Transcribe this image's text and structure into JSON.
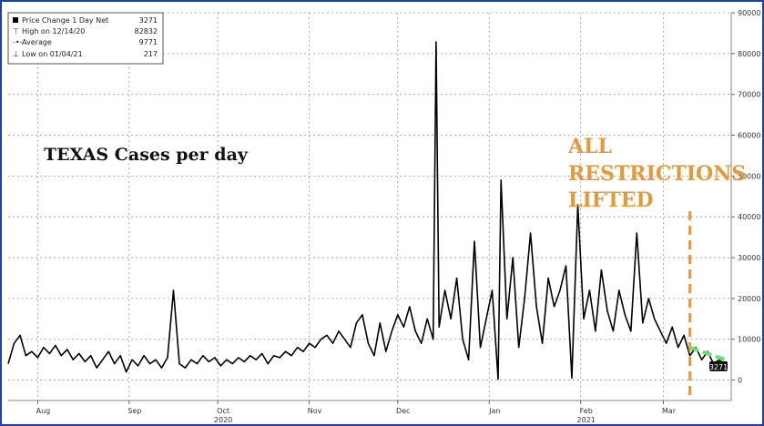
{
  "chart_data": {
    "type": "line",
    "title": "TEXAS Cases per day",
    "annotation": [
      "ALL",
      "RESTRICTIONS",
      "LIFTED"
    ],
    "annotation_date": "2021-03-10",
    "x_start": "2020-07-22",
    "x_end": "2021-03-24",
    "ylim": [
      -5000,
      90000
    ],
    "y_ticks": [
      0,
      10000,
      20000,
      30000,
      40000,
      50000,
      60000,
      70000,
      80000,
      90000
    ],
    "x_ticks": [
      {
        "date": "2020-08-01",
        "label": "Aug",
        "year": ""
      },
      {
        "date": "2020-09-01",
        "label": "Sep",
        "year": ""
      },
      {
        "date": "2020-10-01",
        "label": "Oct",
        "year": "2020"
      },
      {
        "date": "2020-11-01",
        "label": "Nov",
        "year": ""
      },
      {
        "date": "2020-12-01",
        "label": "Dec",
        "year": ""
      },
      {
        "date": "2021-01-01",
        "label": "Jan",
        "year": ""
      },
      {
        "date": "2021-02-01",
        "label": "Feb",
        "year": "2021"
      },
      {
        "date": "2021-03-01",
        "label": "Mar",
        "year": ""
      }
    ],
    "legend": [
      {
        "label": "Price Change 1 Day Net",
        "value": "3271"
      },
      {
        "label": "High on 12/14/20",
        "value": "82832"
      },
      {
        "label": "Average",
        "value": "9771"
      },
      {
        "label": "Low on 01/04/21",
        "value": "217"
      }
    ],
    "last_value_label": "3271",
    "series": [
      {
        "color": "#000000",
        "points": [
          [
            "2020-07-22",
            4000
          ],
          [
            "2020-07-24",
            9000
          ],
          [
            "2020-07-26",
            11000
          ],
          [
            "2020-07-28",
            6000
          ],
          [
            "2020-07-30",
            7000
          ],
          [
            "2020-08-01",
            5500
          ],
          [
            "2020-08-03",
            8000
          ],
          [
            "2020-08-05",
            6500
          ],
          [
            "2020-08-07",
            8500
          ],
          [
            "2020-08-09",
            6000
          ],
          [
            "2020-08-11",
            7500
          ],
          [
            "2020-08-13",
            5000
          ],
          [
            "2020-08-15",
            6500
          ],
          [
            "2020-08-17",
            4500
          ],
          [
            "2020-08-19",
            6000
          ],
          [
            "2020-08-21",
            3000
          ],
          [
            "2020-08-23",
            5000
          ],
          [
            "2020-08-25",
            7000
          ],
          [
            "2020-08-27",
            4000
          ],
          [
            "2020-08-29",
            6000
          ],
          [
            "2020-08-31",
            2000
          ],
          [
            "2020-09-02",
            5000
          ],
          [
            "2020-09-04",
            3500
          ],
          [
            "2020-09-06",
            6000
          ],
          [
            "2020-09-08",
            4000
          ],
          [
            "2020-09-10",
            5000
          ],
          [
            "2020-09-12",
            3000
          ],
          [
            "2020-09-14",
            5500
          ],
          [
            "2020-09-16",
            22000
          ],
          [
            "2020-09-18",
            4000
          ],
          [
            "2020-09-20",
            3000
          ],
          [
            "2020-09-22",
            5000
          ],
          [
            "2020-09-24",
            4000
          ],
          [
            "2020-09-26",
            6000
          ],
          [
            "2020-09-28",
            4500
          ],
          [
            "2020-09-30",
            5500
          ],
          [
            "2020-10-02",
            3500
          ],
          [
            "2020-10-04",
            5000
          ],
          [
            "2020-10-06",
            4000
          ],
          [
            "2020-10-08",
            5500
          ],
          [
            "2020-10-10",
            4500
          ],
          [
            "2020-10-12",
            6000
          ],
          [
            "2020-10-14",
            5000
          ],
          [
            "2020-10-16",
            6500
          ],
          [
            "2020-10-18",
            4000
          ],
          [
            "2020-10-20",
            6000
          ],
          [
            "2020-10-22",
            5500
          ],
          [
            "2020-10-24",
            7000
          ],
          [
            "2020-10-26",
            6000
          ],
          [
            "2020-10-28",
            8000
          ],
          [
            "2020-10-30",
            7000
          ],
          [
            "2020-11-01",
            9000
          ],
          [
            "2020-11-03",
            8000
          ],
          [
            "2020-11-05",
            10000
          ],
          [
            "2020-11-07",
            11000
          ],
          [
            "2020-11-09",
            9000
          ],
          [
            "2020-11-11",
            12000
          ],
          [
            "2020-11-13",
            10000
          ],
          [
            "2020-11-15",
            8000
          ],
          [
            "2020-11-17",
            14000
          ],
          [
            "2020-11-19",
            16000
          ],
          [
            "2020-11-21",
            9000
          ],
          [
            "2020-11-23",
            6000
          ],
          [
            "2020-11-25",
            14000
          ],
          [
            "2020-11-27",
            7000
          ],
          [
            "2020-11-29",
            12000
          ],
          [
            "2020-12-01",
            16000
          ],
          [
            "2020-12-03",
            13000
          ],
          [
            "2020-12-05",
            18000
          ],
          [
            "2020-12-07",
            12000
          ],
          [
            "2020-12-09",
            9000
          ],
          [
            "2020-12-11",
            15000
          ],
          [
            "2020-12-13",
            10000
          ],
          [
            "2020-12-14",
            82832
          ],
          [
            "2020-12-15",
            13000
          ],
          [
            "2020-12-17",
            22000
          ],
          [
            "2020-12-19",
            15000
          ],
          [
            "2020-12-21",
            25000
          ],
          [
            "2020-12-23",
            10000
          ],
          [
            "2020-12-25",
            5000
          ],
          [
            "2020-12-27",
            34000
          ],
          [
            "2020-12-29",
            8000
          ],
          [
            "2020-12-31",
            15000
          ],
          [
            "2021-01-02",
            22000
          ],
          [
            "2021-01-04",
            217
          ],
          [
            "2021-01-05",
            49000
          ],
          [
            "2021-01-07",
            15000
          ],
          [
            "2021-01-09",
            30000
          ],
          [
            "2021-01-11",
            8000
          ],
          [
            "2021-01-13",
            20000
          ],
          [
            "2021-01-15",
            36000
          ],
          [
            "2021-01-17",
            18000
          ],
          [
            "2021-01-19",
            9000
          ],
          [
            "2021-01-21",
            25000
          ],
          [
            "2021-01-23",
            18000
          ],
          [
            "2021-01-25",
            22000
          ],
          [
            "2021-01-27",
            28000
          ],
          [
            "2021-01-29",
            500
          ],
          [
            "2021-01-31",
            43000
          ],
          [
            "2021-02-02",
            15000
          ],
          [
            "2021-02-04",
            22000
          ],
          [
            "2021-02-06",
            12000
          ],
          [
            "2021-02-08",
            27000
          ],
          [
            "2021-02-10",
            17000
          ],
          [
            "2021-02-12",
            12000
          ],
          [
            "2021-02-14",
            22000
          ],
          [
            "2021-02-16",
            16000
          ],
          [
            "2021-02-18",
            12000
          ],
          [
            "2021-02-20",
            36000
          ],
          [
            "2021-02-22",
            14000
          ],
          [
            "2021-02-24",
            20000
          ],
          [
            "2021-02-26",
            15000
          ],
          [
            "2021-02-28",
            12000
          ],
          [
            "2021-03-02",
            9000
          ],
          [
            "2021-03-04",
            13000
          ],
          [
            "2021-03-06",
            8000
          ],
          [
            "2021-03-08",
            11000
          ],
          [
            "2021-03-10",
            6000
          ],
          [
            "2021-03-12",
            8000
          ],
          [
            "2021-03-14",
            5000
          ],
          [
            "2021-03-16",
            7000
          ],
          [
            "2021-03-18",
            4000
          ],
          [
            "2021-03-20",
            5000
          ],
          [
            "2021-03-22",
            3271
          ]
        ]
      }
    ],
    "trend_line": {
      "color": "#66e36b",
      "from": [
        "2021-03-10",
        8000
      ],
      "to": [
        "2021-03-22",
        5000
      ]
    },
    "annotation_line_color": "#e39a3c",
    "grid": true,
    "y_axis_side": "right",
    "legend_position": "top-left"
  }
}
